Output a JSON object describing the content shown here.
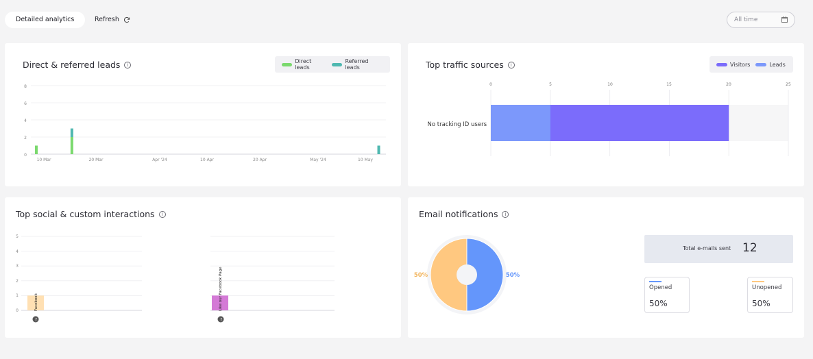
{
  "toolbar": {
    "tab_label": "Detailed analytics",
    "refresh_label": "Refresh",
    "date_filter": "All time"
  },
  "cards": {
    "leads": {
      "title": "Direct & referred leads",
      "legend": [
        "Direct leads",
        "Referred leads"
      ]
    },
    "traffic": {
      "title": "Top traffic sources",
      "legend": [
        "Visitors",
        "Leads"
      ]
    },
    "social": {
      "title": "Top social & custom interactions"
    },
    "email": {
      "title": "Email notifications",
      "total_label": "Total e-mails sent",
      "total_value": "12",
      "opened_label": "Opened",
      "opened_value": "50%",
      "unopened_label": "Unopened",
      "unopened_value": "50%",
      "pie_left_label": "50%",
      "pie_right_label": "50%"
    }
  },
  "colors": {
    "direct": "#7bd96e",
    "referred": "#4fb8b0",
    "visitors": "#7b6cfb",
    "leads": "#7c98fb",
    "opened": "#6496fb",
    "unopened": "#ffc880",
    "social_facebook": "#ffe0b3",
    "social_like": "#d47ad6"
  },
  "chart_data": [
    {
      "type": "bar",
      "yticks": [
        "0",
        "2",
        "4",
        "6",
        "8"
      ],
      "xticks": [
        "10 Mar",
        "20 Mar",
        "Apr '24",
        "10 Apr",
        "20 Apr",
        "May '24",
        "10 May"
      ],
      "ylim": [
        0,
        8
      ],
      "series": [
        {
          "name": "Direct leads",
          "points": [
            {
              "date": "2024-03-03",
              "value": 1
            },
            {
              "date": "2024-03-11",
              "value": 2
            }
          ]
        },
        {
          "name": "Referred leads",
          "points": [
            {
              "date": "2024-03-11",
              "value": 1
            },
            {
              "date": "2024-05-19",
              "value": 1
            }
          ]
        }
      ]
    },
    {
      "type": "bar",
      "orientation": "horizontal",
      "categories": [
        "No tracking ID users"
      ],
      "xticks": [
        "0",
        "5",
        "10",
        "15",
        "20",
        "25"
      ],
      "xlim": [
        0,
        25
      ],
      "series": [
        {
          "name": "Visitors",
          "values": [
            20
          ]
        },
        {
          "name": "Leads",
          "values": [
            5
          ]
        }
      ]
    },
    {
      "type": "bar",
      "yticks": [
        "0",
        "1",
        "2",
        "3",
        "4",
        "5"
      ],
      "ylim": [
        0,
        5
      ],
      "categories": [
        "Facebook",
        "Like our Facebook Page"
      ],
      "values": [
        1,
        1
      ]
    },
    {
      "type": "pie",
      "categories": [
        "Opened",
        "Unopened"
      ],
      "values": [
        50,
        50
      ]
    }
  ]
}
